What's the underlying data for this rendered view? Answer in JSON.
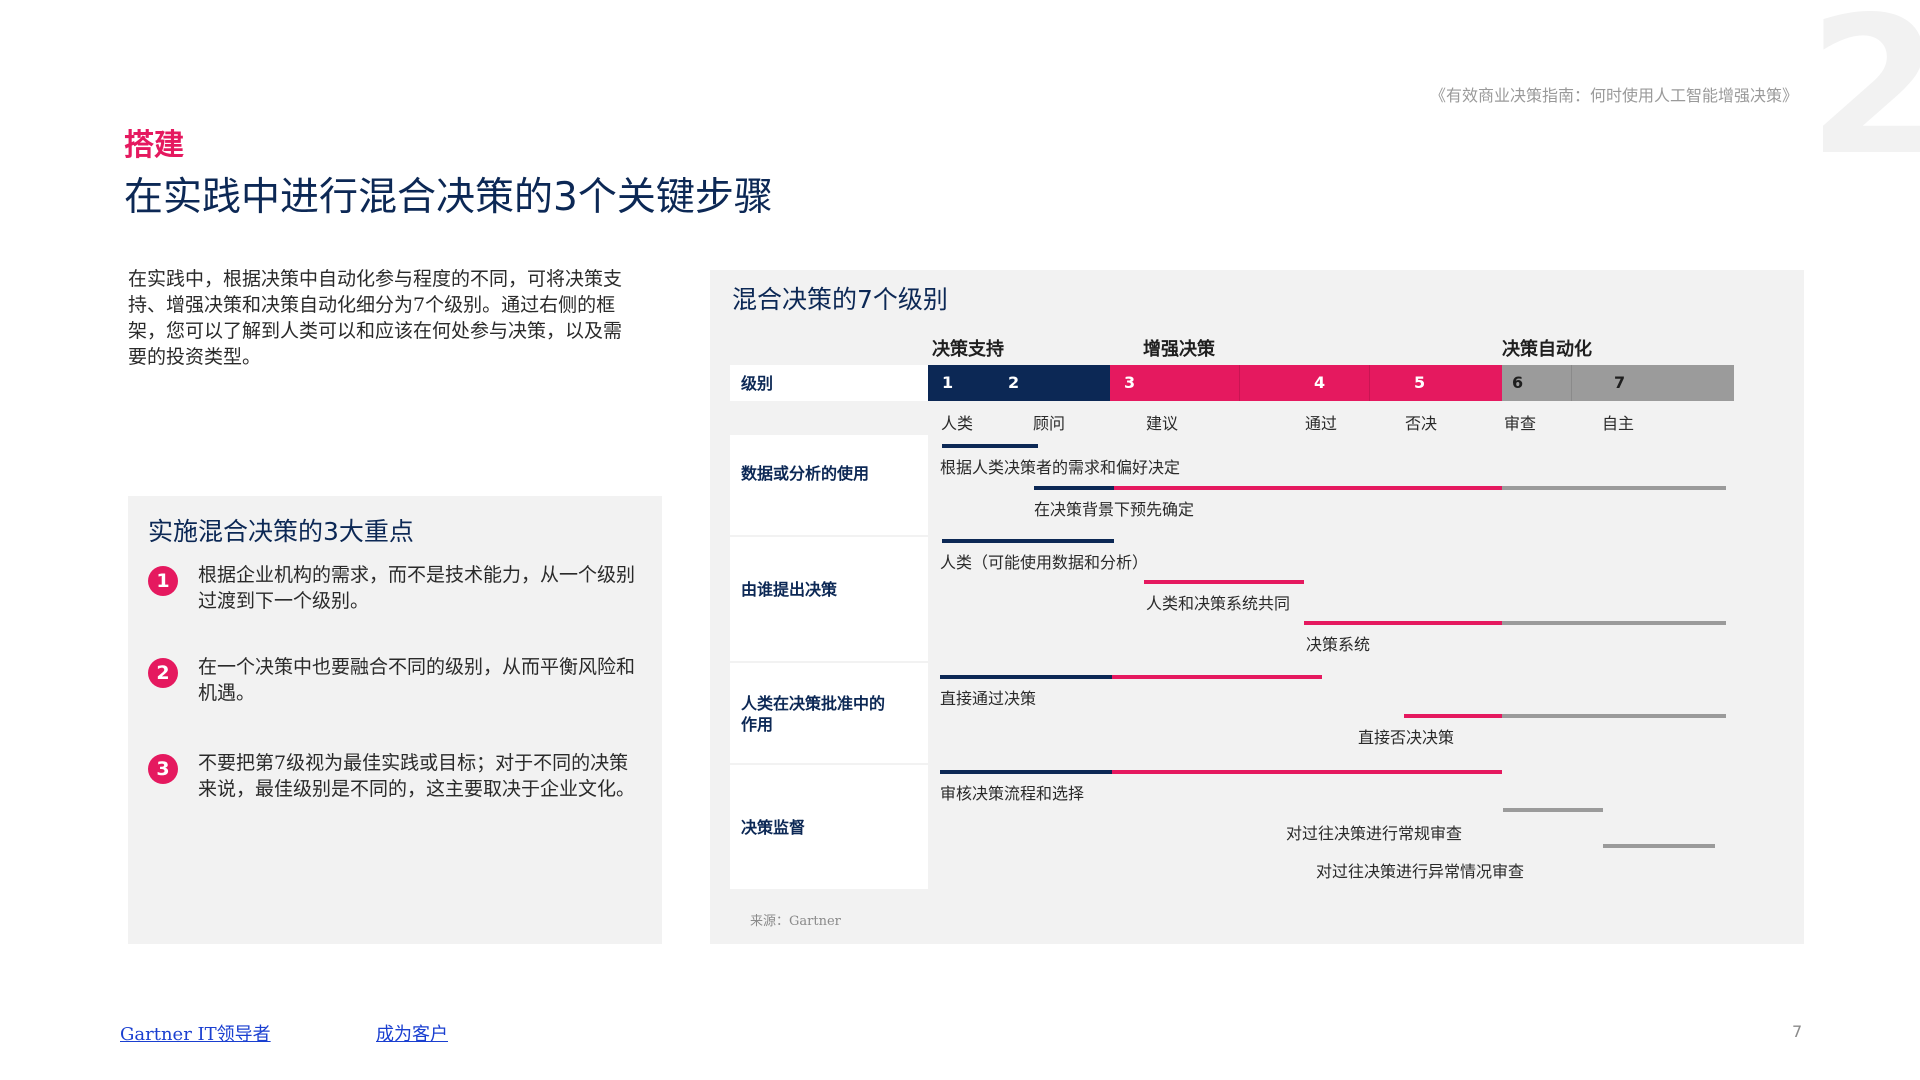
{
  "header": {
    "doc_title": "《有效商业决策指南：何时使用人工智能增强决策》",
    "chapter_number": "2",
    "section_label": "搭建",
    "page_title": "在实践中进行混合决策的3个关键步骤"
  },
  "intro": "在实践中，根据决策中自动化参与程度的不同，可将决策支持、增强决策和决策自动化细分为7个级别。通过右侧的框架，您可以了解到人类可以和应该在何处参与决策，以及需要的投资类型。",
  "key_points": {
    "title": "实施混合决策的3大重点",
    "items": [
      {
        "number": "1",
        "text": "根据企业机构的需求，而不是技术能力，从一个级别过渡到下一个级别。"
      },
      {
        "number": "2",
        "text": "在一个决策中也要融合不同的级别，从而平衡风险和机遇。"
      },
      {
        "number": "3",
        "text": "不要把第7级视为最佳实践或目标；对于不同的决策来说，最佳级别是不同的，这主要取决于企业文化。"
      }
    ]
  },
  "framework": {
    "title": "混合决策的7个级别",
    "groups": [
      "决策支持",
      "增强决策",
      "决策自动化"
    ],
    "level_row_label": "级别",
    "levels": [
      {
        "number": "1",
        "name": "人类"
      },
      {
        "number": "2",
        "name": "顾问"
      },
      {
        "number": "3",
        "name": "建议"
      },
      {
        "number": "4",
        "name": "通过"
      },
      {
        "number": "5",
        "name": "否决"
      },
      {
        "number": "6",
        "name": "审查"
      },
      {
        "number": "7",
        "name": "自主"
      }
    ],
    "rows": [
      {
        "label": "数据或分析的使用",
        "items": [
          "根据人类决策者的需求和偏好决定",
          "在决策背景下预先确定"
        ]
      },
      {
        "label": "由谁提出决策",
        "items": [
          "人类（可能使用数据和分析）",
          "人类和决策系统共同",
          "决策系统"
        ]
      },
      {
        "label": "人类在决策批准中的作用",
        "items": [
          "直接通过决策",
          "直接否决决策"
        ]
      },
      {
        "label": "决策监督",
        "items": [
          "审核决策流程和选择",
          "对过往决策进行常规审查",
          "对过往决策进行异常情况审查"
        ]
      }
    ],
    "source": "来源：Gartner",
    "colors": {
      "navy": "#0c2855",
      "pink": "#e5195f",
      "gray": "#9b9b9b"
    }
  },
  "footer": {
    "link1": "Gartner IT领导者",
    "link2": "成为客户",
    "page_number": "7"
  }
}
